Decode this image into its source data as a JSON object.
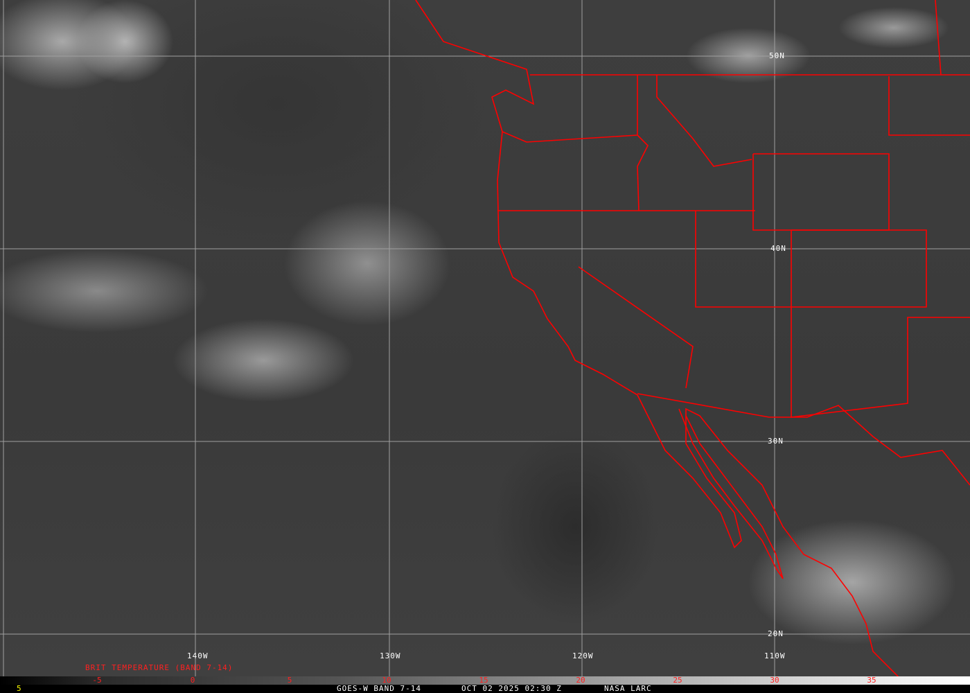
{
  "map": {
    "latitude_labels": [
      "50N",
      "40N",
      "30N",
      "20N"
    ],
    "longitude_labels": [
      "140W",
      "130W",
      "120W",
      "110W"
    ],
    "border_color": "#ff0000",
    "grid_color": "#a0a0a0"
  },
  "legend": {
    "title": "BRIT TEMPERATURE (BAND 7-14)",
    "ticks": [
      "-5",
      "0",
      "5",
      "10",
      "15",
      "20",
      "25",
      "30",
      "35"
    ],
    "tick_color": "#ff2020",
    "scale": "black-to-white"
  },
  "footer": {
    "frame_number": "5",
    "satellite": "GOES-W BAND 7-14",
    "datetime": "OCT 02 2025 02:30 Z",
    "source": "NASA LARC"
  }
}
